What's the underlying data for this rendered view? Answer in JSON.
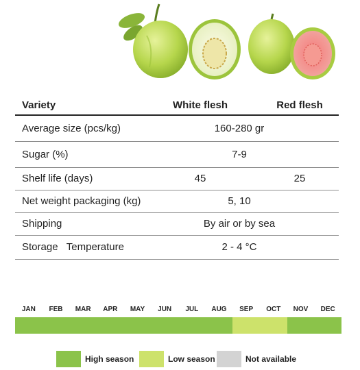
{
  "table": {
    "headers": [
      "Variety",
      "White flesh",
      "Red flesh"
    ],
    "rows": [
      {
        "label": "Average size (pcs/kg)",
        "value": "160-280 gr"
      },
      {
        "label": "Sugar (%)",
        "value": "7-9"
      },
      {
        "label": "Shelf life (days)",
        "white": "45",
        "red": "25"
      },
      {
        "label": "Net weight packaging (kg)",
        "value": "5, 10"
      },
      {
        "label": "Shipping",
        "value": "By air or by sea"
      },
      {
        "label": "Storage   Temperature",
        "value": "2 - 4 °C"
      }
    ]
  },
  "calendar": {
    "months": [
      "JAN",
      "FEB",
      "MAR",
      "APR",
      "MAY",
      "JUN",
      "JUL",
      "AUG",
      "SEP",
      "OCT",
      "NOV",
      "DEC"
    ],
    "availability": [
      "high",
      "high",
      "high",
      "high",
      "high",
      "high",
      "high",
      "high",
      "low",
      "low",
      "high",
      "high"
    ]
  },
  "legend": [
    {
      "key": "high",
      "label": "High season",
      "color": "#8bc34a"
    },
    {
      "key": "low",
      "label": "Low season",
      "color": "#cde26b"
    },
    {
      "key": "na",
      "label": "Not available",
      "color": "#d3d3d3"
    }
  ]
}
